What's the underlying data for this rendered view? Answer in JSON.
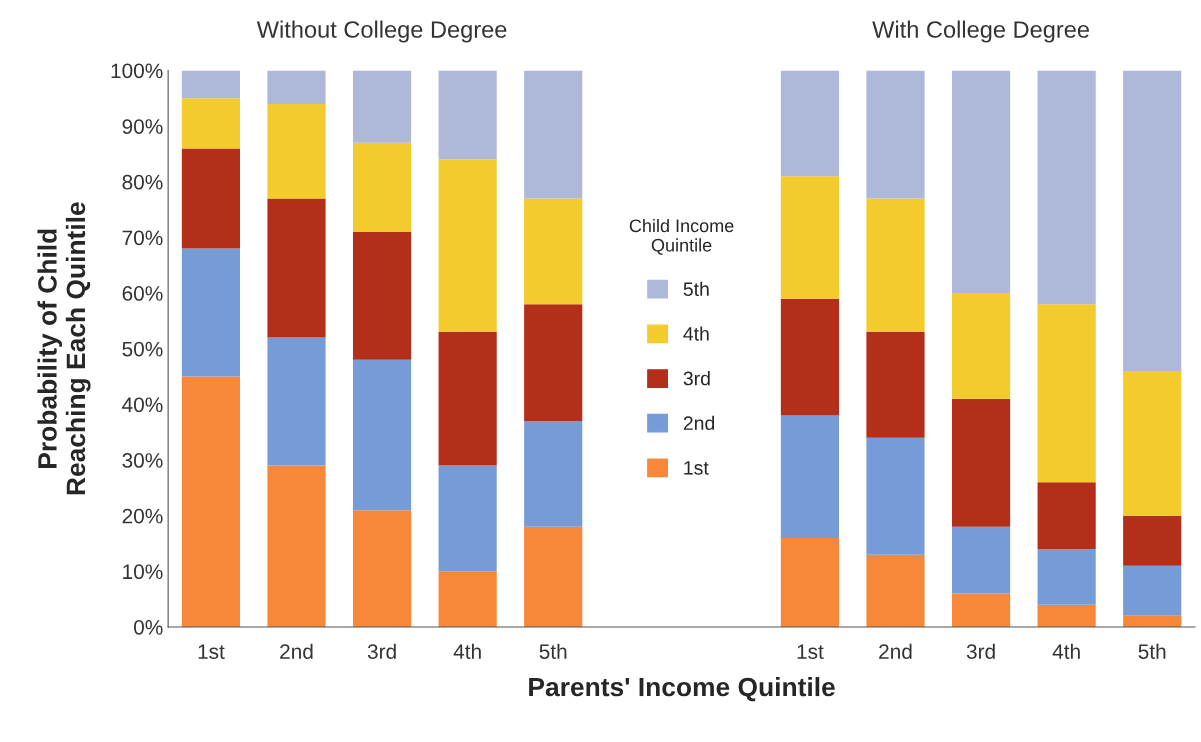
{
  "chart_data": {
    "type": "bar",
    "stacked": true,
    "xlabel": "Parents' Income Quintile",
    "ylabel": "Probability of Child\nReaching Each Quintile",
    "legend_title": "Child Income\nQuintile",
    "legend": "center",
    "grid": false,
    "annotations": [
      "Without College Degree",
      "With College Degree"
    ],
    "categories": [
      "1st",
      "2nd",
      "3rd",
      "4th",
      "5th",
      null,
      null,
      "1st",
      "2nd",
      "3rd",
      "4th",
      "5th"
    ],
    "ylim": [
      0,
      100
    ],
    "yticks": [
      {
        "value": 0,
        "label": "0%"
      },
      {
        "value": 10,
        "label": "10%"
      },
      {
        "value": 20,
        "label": "20%"
      },
      {
        "value": 30,
        "label": "30%"
      },
      {
        "value": 40,
        "label": "40%"
      },
      {
        "value": 50,
        "label": "50%"
      },
      {
        "value": 60,
        "label": "60%"
      },
      {
        "value": 70,
        "label": "70%"
      },
      {
        "value": 80,
        "label": "80%"
      },
      {
        "value": 90,
        "label": "90%"
      },
      {
        "value": 100,
        "label": "100%"
      }
    ],
    "series": [
      {
        "name": "1st",
        "color": "#f7883a",
        "values": [
          45,
          29,
          21,
          10,
          18,
          null,
          null,
          16,
          13,
          6,
          4,
          2
        ]
      },
      {
        "name": "2nd",
        "color": "#769cd8",
        "values": [
          23,
          23,
          27,
          19,
          19,
          null,
          null,
          22,
          21,
          12,
          10,
          9
        ]
      },
      {
        "name": "3rd",
        "color": "#b32f1a",
        "values": [
          18,
          25,
          23,
          24,
          21,
          null,
          null,
          21,
          19,
          23,
          12,
          9
        ]
      },
      {
        "name": "4th",
        "color": "#f3cb2c",
        "values": [
          9,
          17,
          16,
          31,
          19,
          null,
          null,
          22,
          24,
          19,
          32,
          26
        ]
      },
      {
        "name": "5th",
        "color": "#aeb8d8",
        "values": [
          5,
          6,
          13,
          16,
          23,
          null,
          null,
          19,
          23,
          40,
          42,
          54
        ]
      }
    ]
  }
}
